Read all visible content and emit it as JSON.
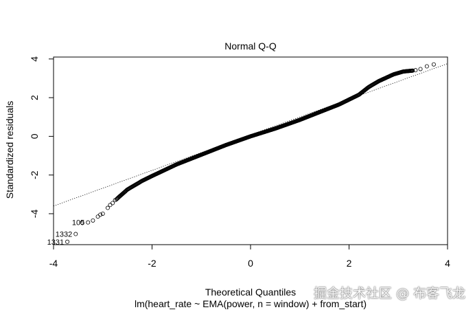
{
  "chart_data": {
    "type": "scatter",
    "title": "Normal Q-Q",
    "xlabel": "Theoretical Quantiles",
    "ylabel": "Standardized residuals",
    "subtitle": "lm(heart_rate ~ EMA(power, n = window) + from_start)",
    "xlim": [
      -4,
      4
    ],
    "ylim": [
      -5.6,
      4.1
    ],
    "x_ticks": [
      -4,
      -2,
      0,
      2,
      4
    ],
    "y_ticks": [
      -4,
      -2,
      0,
      2,
      4
    ],
    "grid": false,
    "reference_line": {
      "slope": 0.92,
      "intercept": 0.08,
      "style": "dotted"
    },
    "quantile_curve": [
      [
        -3.6,
        -5.5
      ],
      [
        -3.3,
        -4.4
      ],
      [
        -3.0,
        -4.0
      ],
      [
        -2.7,
        -3.2
      ],
      [
        -2.5,
        -2.75
      ],
      [
        -2.2,
        -2.3
      ],
      [
        -2.0,
        -2.05
      ],
      [
        -1.5,
        -1.45
      ],
      [
        -1.0,
        -0.95
      ],
      [
        -0.5,
        -0.45
      ],
      [
        0.0,
        0.0
      ],
      [
        0.5,
        0.4
      ],
      [
        1.0,
        0.85
      ],
      [
        1.5,
        1.35
      ],
      [
        1.8,
        1.65
      ],
      [
        2.0,
        1.9
      ],
      [
        2.2,
        2.15
      ],
      [
        2.4,
        2.55
      ],
      [
        2.6,
        2.85
      ],
      [
        2.9,
        3.2
      ],
      [
        3.1,
        3.35
      ],
      [
        3.3,
        3.4
      ]
    ],
    "points": [
      [
        -3.72,
        -5.45
      ],
      [
        -3.55,
        -5.05
      ],
      [
        -3.42,
        -4.45
      ],
      [
        -3.3,
        -4.45
      ],
      [
        -3.2,
        -4.35
      ],
      [
        -3.1,
        -4.15
      ],
      [
        -3.05,
        -4.05
      ],
      [
        -3.0,
        -4.0
      ],
      [
        -2.9,
        -3.7
      ],
      [
        -2.85,
        -3.55
      ],
      [
        -2.8,
        -3.45
      ],
      [
        -2.75,
        -3.3
      ],
      [
        3.35,
        3.42
      ],
      [
        3.45,
        3.48
      ],
      [
        3.58,
        3.62
      ],
      [
        3.72,
        3.72
      ]
    ],
    "annotations": [
      {
        "text": "105",
        "x": -3.3,
        "y": -4.45
      },
      {
        "text": "1332",
        "x": -3.55,
        "y": -5.05
      },
      {
        "text": "1331",
        "x": -3.72,
        "y": -5.45
      }
    ]
  },
  "watermark": "掘金技术社区 @ 布客飞龙"
}
